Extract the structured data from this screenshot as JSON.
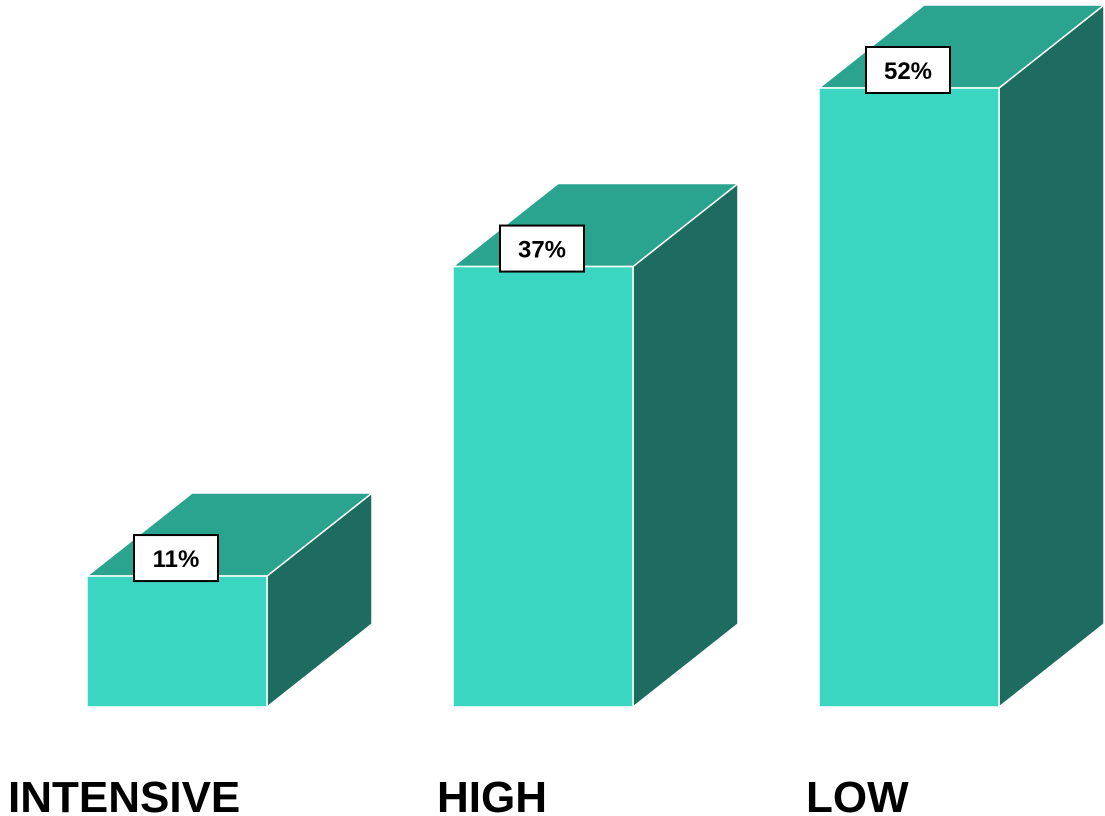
{
  "chart_data": {
    "type": "bar",
    "style": "3d",
    "categories": [
      "INTENSIVE",
      "HIGH",
      "LOW"
    ],
    "values": [
      11,
      37,
      52
    ],
    "data_labels": [
      "11%",
      "37%",
      "52%"
    ],
    "ylim": [
      0,
      52
    ],
    "grid": false,
    "legend": "none"
  },
  "colors": {
    "bar_front": "#3bd6c1",
    "bar_top": "#2aa38f",
    "bar_side": "#1e6b60",
    "bar_edge": "#ffffff",
    "label_box_fill": "#ffffff",
    "label_box_border": "#000000",
    "background": "#ffffff"
  }
}
